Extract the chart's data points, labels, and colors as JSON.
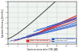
{
  "title": "",
  "xlabel": "Carrier-to-noise ratio (C/N) [dB]",
  "ylabel": "Spectral efficiency [bit/s/Hz]",
  "xlim": [
    0,
    35
  ],
  "ylim": [
    0,
    8
  ],
  "xticks": [
    0,
    5,
    10,
    15,
    20,
    25,
    30,
    35
  ],
  "yticks": [
    0,
    1,
    2,
    3,
    4,
    5,
    6,
    7,
    8
  ],
  "background_color": "#ffffff",
  "grid_color": "#bbbbbb",
  "dvbt_color": "#dd2222",
  "dvbt2_color": "#2255cc",
  "shannon_color": "#444444",
  "dvbt_configs": [
    {
      "cn_min": 3.1,
      "se_at_min": 0.59,
      "slope": 0.115
    },
    {
      "cn_min": 4.9,
      "se_at_min": 0.79,
      "slope": 0.13
    },
    {
      "cn_min": 9.95,
      "se_at_min": 1.18,
      "slope": 0.145
    },
    {
      "cn_min": 12.4,
      "se_at_min": 1.57,
      "slope": 0.148
    },
    {
      "cn_min": 16.5,
      "se_at_min": 2.36,
      "slope": 0.155
    },
    {
      "cn_min": 18.1,
      "se_at_min": 2.65,
      "slope": 0.16
    }
  ],
  "dvbt2_configs": [
    {
      "cn_min": 1.0,
      "se_at_min": 0.59,
      "slope": 0.08
    },
    {
      "cn_min": 3.5,
      "se_at_min": 0.79,
      "slope": 0.085
    },
    {
      "cn_min": 7.0,
      "se_at_min": 1.18,
      "slope": 0.09
    },
    {
      "cn_min": 9.5,
      "se_at_min": 1.57,
      "slope": 0.095
    },
    {
      "cn_min": 13.0,
      "se_at_min": 2.36,
      "slope": 0.1
    },
    {
      "cn_min": 14.5,
      "se_at_min": 2.65,
      "slope": 0.105
    },
    {
      "cn_min": 20.0,
      "se_at_min": 3.3,
      "slope": 0.11
    }
  ],
  "legend_dvbt_label": "DVB-T configurations",
  "legend_dvbt2_label": "DVB-T2 configurations",
  "legend_shannon_label": "Shannon limit"
}
